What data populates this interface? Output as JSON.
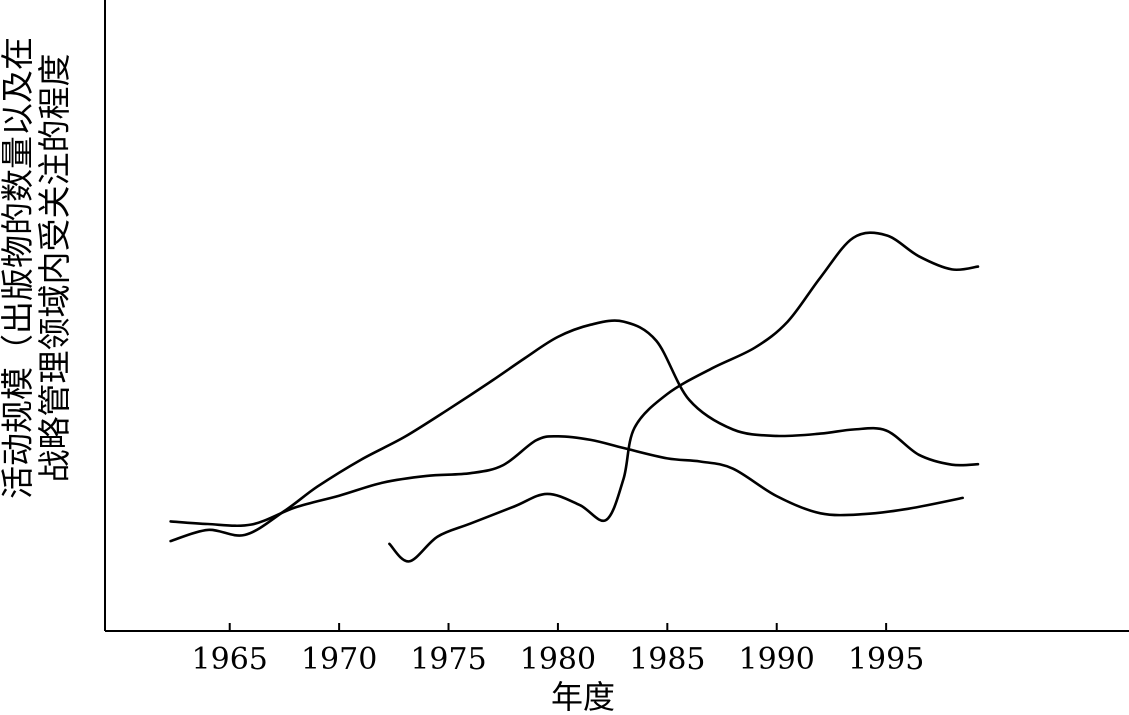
{
  "chart_data": {
    "type": "line",
    "title": "",
    "xlabel": "年度",
    "ylabel_lines": [
      "活动规模（出版物的数量以及在",
      "战略管理领域内受关注的程度"
    ],
    "xlim": [
      1959.3,
      2006.1
    ],
    "ylim": [
      0,
      100
    ],
    "x_ticks": [
      1965,
      1970,
      1975,
      1980,
      1985,
      1990,
      1995
    ],
    "grid": false,
    "legend": "none",
    "series": [
      {
        "x": [
          1962.3,
          1964,
          1965.7,
          1967.5,
          1969,
          1971,
          1973,
          1975,
          1977,
          1978.5,
          1980,
          1981.5,
          1983,
          1984.5,
          1986,
          1988,
          1990,
          1992,
          1993.5,
          1995,
          1996.5,
          1998,
          1999.2
        ],
        "y": [
          15.3,
          17.8,
          16.7,
          22,
          27.4,
          33.4,
          38.5,
          44.6,
          51,
          56,
          60.7,
          63.4,
          64.1,
          59.8,
          46.7,
          40.1,
          38.7,
          39.2,
          40.1,
          39.9,
          34.5,
          32.3,
          32.4
        ]
      },
      {
        "x": [
          1962.3,
          1964,
          1966,
          1968,
          1970,
          1972,
          1974,
          1976,
          1977.5,
          1979,
          1980,
          1981.5,
          1983,
          1985,
          1986.5,
          1988,
          1990,
          1992,
          1994,
          1996,
          1998.5
        ],
        "y": [
          19.7,
          19.1,
          19,
          22.8,
          25.4,
          28.3,
          29.8,
          30.4,
          32.2,
          37.7,
          38.6,
          37.8,
          36,
          33.7,
          33,
          31.4,
          25.3,
          21.5,
          21.3,
          22.5,
          24.9
        ]
      },
      {
        "x": [
          1972.3,
          1973.2,
          1974.5,
          1976,
          1978,
          1979.5,
          1981,
          1982.2,
          1983,
          1983.5,
          1985,
          1987,
          1989,
          1990.5,
          1992,
          1993.5,
          1995,
          1996.5,
          1998,
          1999.2
        ],
        "y": [
          14.7,
          10.8,
          16.3,
          19.2,
          23,
          25.8,
          23.3,
          20,
          29.2,
          40.5,
          48,
          53.6,
          58.3,
          64.1,
          73.9,
          82.7,
          83.3,
          78.6,
          75.7,
          76.3
        ]
      }
    ]
  }
}
